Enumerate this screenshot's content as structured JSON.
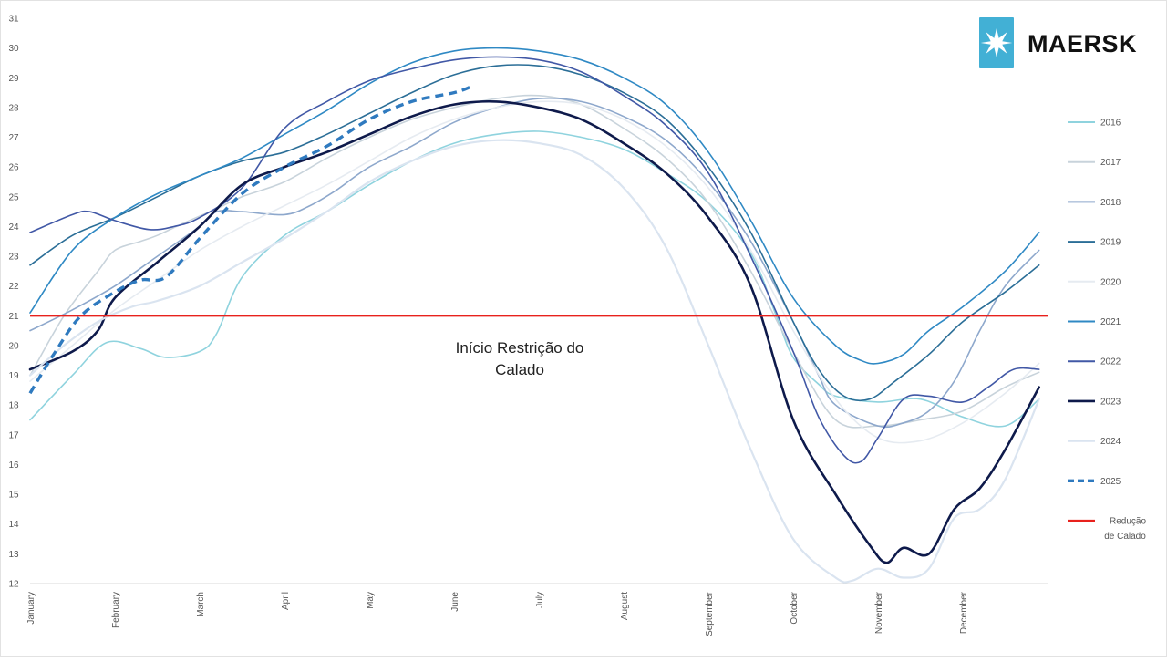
{
  "brand": {
    "name": "MAERSK",
    "icon": "star-icon",
    "color": "#42B0D5"
  },
  "chart_data": {
    "type": "line",
    "title": "",
    "xlabel": "",
    "ylabel": "",
    "ylim": [
      12,
      31
    ],
    "y_ticks": [
      "12",
      "13",
      "14",
      "15",
      "16",
      "17",
      "18",
      "19",
      "20",
      "21",
      "22",
      "23",
      "24",
      "25",
      "26",
      "27",
      "28",
      "29",
      "30",
      "31"
    ],
    "categories": [
      "January",
      "February",
      "March",
      "April",
      "May",
      "June",
      "July",
      "August",
      "September",
      "October",
      "November",
      "December"
    ],
    "x_range": [
      0,
      12
    ],
    "grid": false,
    "legend_position": "right",
    "annotation": {
      "lines": [
        "Início Restrição do",
        "Calado"
      ]
    },
    "threshold": {
      "label_lines": [
        "Redução",
        "de Calado"
      ],
      "value": 21,
      "color": "#E8211D"
    },
    "series": [
      {
        "name": "2016",
        "color": "#8FD3DE",
        "width": 1.6,
        "dash": false,
        "x": [
          0,
          0.5,
          0.9,
          1.3,
          1.6,
          2.0,
          2.2,
          2.5,
          3.0,
          3.5,
          4.0,
          4.5,
          5.0,
          5.5,
          6.0,
          6.5,
          7.0,
          7.5,
          8.0,
          8.5,
          8.8,
          9.0,
          9.3,
          9.5,
          10.0,
          10.5,
          11.0,
          11.5,
          11.9
        ],
        "y": [
          17.5,
          19.0,
          20.1,
          19.9,
          19.6,
          19.8,
          20.4,
          22.3,
          23.7,
          24.5,
          25.4,
          26.2,
          26.8,
          27.1,
          27.2,
          27.0,
          26.6,
          25.8,
          24.8,
          23.1,
          21.0,
          19.6,
          18.7,
          18.3,
          18.1,
          18.2,
          17.6,
          17.3,
          18.2
        ]
      },
      {
        "name": "2017",
        "color": "#C8D3DB",
        "width": 1.6,
        "dash": false,
        "x": [
          0,
          0.4,
          0.8,
          1.0,
          1.3,
          1.5,
          1.8,
          2.2,
          2.5,
          3.0,
          3.5,
          4.0,
          4.5,
          5.0,
          5.5,
          6.0,
          6.5,
          7.0,
          7.5,
          8.0,
          8.5,
          9.0,
          9.5,
          10.0,
          10.5,
          11.0,
          11.5,
          11.9
        ],
        "y": [
          19.0,
          21.0,
          22.5,
          23.2,
          23.5,
          23.7,
          24.1,
          24.6,
          25.0,
          25.5,
          26.3,
          27.0,
          27.6,
          28.0,
          28.3,
          28.4,
          28.1,
          27.3,
          26.3,
          24.8,
          22.5,
          19.8,
          17.5,
          17.3,
          17.5,
          17.8,
          18.6,
          19.1
        ]
      },
      {
        "name": "2018",
        "color": "#8EA8CC",
        "width": 1.6,
        "dash": false,
        "x": [
          0,
          0.5,
          1.0,
          1.5,
          2.0,
          2.2,
          2.5,
          3.0,
          3.3,
          3.6,
          4.0,
          4.5,
          5.0,
          5.5,
          6.0,
          6.5,
          7.0,
          7.5,
          8.0,
          8.5,
          9.0,
          9.3,
          9.5,
          10.0,
          10.3,
          10.6,
          10.9,
          11.2,
          11.5,
          11.9
        ],
        "y": [
          20.5,
          21.2,
          22.0,
          23.0,
          24.0,
          24.5,
          24.5,
          24.4,
          24.7,
          25.2,
          26.0,
          26.7,
          27.5,
          28.0,
          28.3,
          28.2,
          27.7,
          26.9,
          25.5,
          23.5,
          20.8,
          19.0,
          18.0,
          17.3,
          17.4,
          17.8,
          18.8,
          20.5,
          22.0,
          23.2
        ]
      },
      {
        "name": "2019",
        "color": "#2B6E97",
        "width": 1.6,
        "dash": false,
        "x": [
          0,
          0.5,
          1.0,
          1.5,
          2.0,
          2.5,
          3.0,
          3.5,
          4.0,
          4.5,
          5.0,
          5.5,
          6.0,
          6.5,
          7.0,
          7.5,
          8.0,
          8.5,
          9.0,
          9.3,
          9.6,
          9.9,
          10.2,
          10.6,
          11.0,
          11.5,
          11.9
        ],
        "y": [
          22.7,
          23.7,
          24.3,
          25.0,
          25.7,
          26.2,
          26.5,
          27.1,
          27.8,
          28.5,
          29.1,
          29.4,
          29.4,
          29.1,
          28.5,
          27.6,
          26.0,
          23.8,
          20.8,
          19.2,
          18.3,
          18.2,
          18.8,
          19.7,
          20.8,
          21.8,
          22.7
        ]
      },
      {
        "name": "2020",
        "color": "#E6EBF1",
        "width": 1.6,
        "dash": false,
        "x": [
          0,
          0.5,
          1.0,
          1.5,
          2.0,
          2.5,
          3.0,
          3.5,
          4.0,
          4.5,
          5.0,
          5.5,
          6.0,
          6.5,
          7.0,
          7.5,
          8.0,
          8.5,
          9.0,
          9.5,
          10.0,
          10.5,
          11.0,
          11.5,
          11.9
        ],
        "y": [
          18.8,
          20.0,
          21.2,
          22.2,
          23.2,
          24.0,
          24.7,
          25.4,
          26.2,
          27.0,
          27.6,
          28.0,
          28.2,
          28.1,
          27.6,
          26.7,
          25.3,
          23.2,
          20.5,
          18.2,
          16.9,
          16.8,
          17.4,
          18.4,
          19.4
        ]
      },
      {
        "name": "2021",
        "color": "#2F89C4",
        "width": 1.6,
        "dash": false,
        "x": [
          0,
          0.5,
          1.0,
          1.5,
          2.0,
          2.5,
          3.0,
          3.5,
          4.0,
          4.5,
          5.0,
          5.5,
          6.0,
          6.5,
          7.0,
          7.5,
          8.0,
          8.5,
          9.0,
          9.5,
          9.8,
          10.0,
          10.3,
          10.6,
          11.0,
          11.5,
          11.9
        ],
        "y": [
          21.1,
          23.2,
          24.3,
          25.1,
          25.7,
          26.3,
          27.1,
          27.9,
          28.8,
          29.5,
          29.9,
          30.0,
          29.9,
          29.6,
          29.0,
          28.1,
          26.5,
          24.2,
          21.6,
          20.0,
          19.5,
          19.4,
          19.7,
          20.5,
          21.3,
          22.5,
          23.8
        ]
      },
      {
        "name": "2022",
        "color": "#4158A6",
        "width": 1.6,
        "dash": false,
        "x": [
          0,
          0.5,
          0.7,
          1.0,
          1.4,
          1.7,
          2.0,
          2.5,
          3.0,
          3.5,
          4.0,
          4.5,
          5.0,
          5.5,
          6.0,
          6.5,
          7.0,
          7.5,
          8.0,
          8.5,
          9.0,
          9.3,
          9.6,
          9.8,
          10.0,
          10.3,
          10.6,
          11.0,
          11.3,
          11.6,
          11.9
        ],
        "y": [
          23.8,
          24.4,
          24.5,
          24.2,
          23.9,
          24.0,
          24.3,
          25.3,
          27.3,
          28.2,
          28.9,
          29.3,
          29.6,
          29.7,
          29.6,
          29.2,
          28.4,
          27.4,
          25.8,
          23.0,
          19.8,
          17.6,
          16.3,
          16.1,
          16.9,
          18.2,
          18.3,
          18.1,
          18.6,
          19.2,
          19.2
        ]
      },
      {
        "name": "2023",
        "color": "#0E1A4B",
        "width": 2.6,
        "dash": false,
        "x": [
          0,
          0.5,
          0.8,
          1.0,
          1.5,
          2.0,
          2.5,
          3.0,
          3.5,
          4.0,
          4.5,
          5.0,
          5.5,
          6.0,
          6.5,
          7.0,
          7.5,
          8.0,
          8.5,
          9.0,
          9.5,
          9.9,
          10.1,
          10.3,
          10.6,
          10.9,
          11.2,
          11.5,
          11.9
        ],
        "y": [
          19.2,
          19.8,
          20.5,
          21.6,
          22.8,
          24.0,
          25.4,
          26.0,
          26.5,
          27.1,
          27.7,
          28.1,
          28.2,
          28.0,
          27.6,
          26.8,
          25.8,
          24.3,
          22.0,
          17.5,
          15.0,
          13.3,
          12.7,
          13.2,
          13.0,
          14.5,
          15.2,
          16.5,
          18.6
        ]
      },
      {
        "name": "2024",
        "color": "#DAE4F0",
        "width": 2.2,
        "dash": false,
        "x": [
          0,
          0.4,
          0.8,
          1.2,
          1.5,
          2.0,
          2.5,
          3.0,
          3.5,
          4.0,
          4.5,
          5.0,
          5.5,
          6.0,
          6.5,
          7.0,
          7.5,
          8.0,
          8.5,
          9.0,
          9.5,
          9.7,
          10.0,
          10.3,
          10.6,
          10.9,
          11.2,
          11.5,
          11.9
        ],
        "y": [
          19.0,
          20.0,
          20.8,
          21.3,
          21.5,
          22.0,
          22.8,
          23.6,
          24.5,
          25.5,
          26.2,
          26.7,
          26.9,
          26.8,
          26.4,
          25.3,
          23.3,
          20.0,
          16.5,
          13.5,
          12.2,
          12.1,
          12.5,
          12.2,
          12.5,
          14.2,
          14.5,
          15.5,
          18.2
        ]
      },
      {
        "name": "2025",
        "color": "#2F7ABF",
        "width": 3.4,
        "dash": true,
        "x": [
          0,
          0.3,
          0.6,
          1.0,
          1.3,
          1.6,
          2.0,
          2.5,
          3.0,
          3.5,
          4.0,
          4.5,
          5.0,
          5.2
        ],
        "y": [
          18.4,
          19.8,
          21.0,
          21.8,
          22.2,
          22.3,
          23.6,
          25.1,
          26.0,
          26.7,
          27.6,
          28.2,
          28.5,
          28.7
        ]
      }
    ]
  }
}
